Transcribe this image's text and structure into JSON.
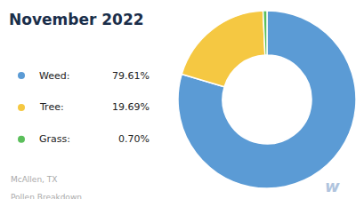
{
  "chart_data": {
    "type": "donut",
    "title": "November 2022",
    "subtitle": [
      "McAllen, TX",
      "Pollen Breakdown"
    ],
    "categories": [
      "Weed:",
      "Tree:",
      "Grass:"
    ],
    "values": [
      79.61,
      19.69,
      0.7
    ],
    "value_labels": [
      "79.61%",
      "19.69%",
      "0.70%"
    ],
    "colors": [
      "#5B9BD5",
      "#F5C842",
      "#5BBF5B"
    ],
    "legend": "left",
    "annotations": [
      "w"
    ]
  }
}
